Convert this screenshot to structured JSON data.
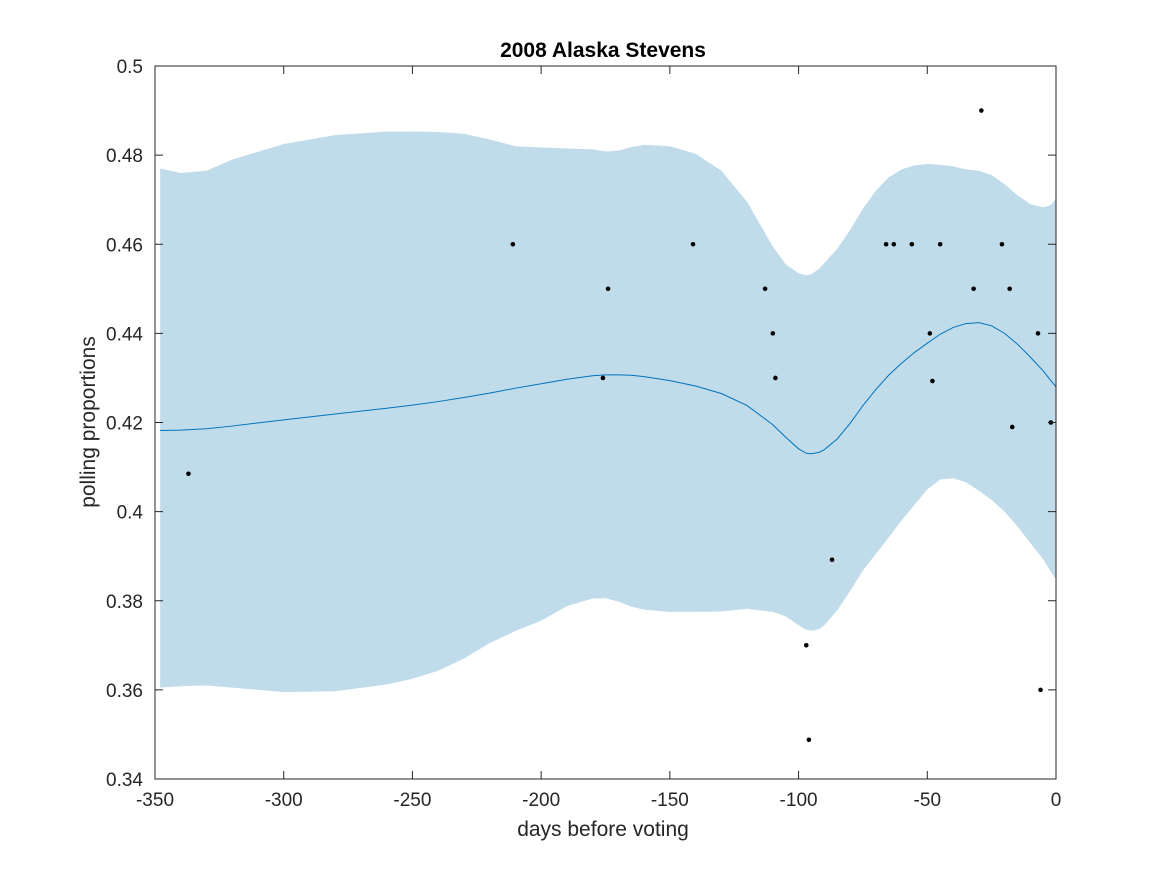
{
  "chart_data": {
    "type": "line",
    "title": "2008 Alaska Stevens",
    "xlabel": "days before voting",
    "ylabel": "polling proportions",
    "xlim": [
      -350,
      0
    ],
    "ylim": [
      0.34,
      0.5
    ],
    "x_ticks": [
      -350,
      -300,
      -250,
      -200,
      -150,
      -100,
      -50,
      0
    ],
    "x_tick_labels": [
      "-350",
      "-300",
      "-250",
      "-200",
      "-150",
      "-100",
      "-50",
      "0"
    ],
    "y_ticks": [
      0.34,
      0.36,
      0.38,
      0.4,
      0.42,
      0.44,
      0.46,
      0.48,
      0.5
    ],
    "y_tick_labels": [
      "0.34",
      "0.36",
      "0.38",
      "0.4",
      "0.42",
      "0.44",
      "0.46",
      "0.48",
      "0.5"
    ],
    "grid": false,
    "box": true,
    "colors": {
      "band": "#c0dcea",
      "mean_line": "#0072bd",
      "points": "#000000",
      "axes": "#262626"
    },
    "series": [
      {
        "type": "area",
        "x": [
          -348,
          -340,
          -330,
          -320,
          -300,
          -280,
          -260,
          -250,
          -240,
          -230,
          -220,
          -210,
          -200,
          -190,
          -180,
          -175,
          -170,
          -165,
          -160,
          -150,
          -140,
          -130,
          -120,
          -110,
          -105,
          -100,
          -97,
          -95,
          -92,
          -90,
          -85,
          -80,
          -75,
          -70,
          -65,
          -60,
          -55,
          -50,
          -45,
          -40,
          -35,
          -30,
          -25,
          -20,
          -15,
          -10,
          -5,
          -2,
          0
        ],
        "upper": [
          0.477,
          0.476,
          0.4765,
          0.479,
          0.4825,
          0.4845,
          0.4853,
          0.4853,
          0.4852,
          0.4848,
          0.4835,
          0.482,
          0.4817,
          0.4815,
          0.4813,
          0.4808,
          0.481,
          0.4818,
          0.4823,
          0.482,
          0.4803,
          0.4765,
          0.4695,
          0.4595,
          0.4555,
          0.4535,
          0.453,
          0.4533,
          0.4545,
          0.4558,
          0.459,
          0.4632,
          0.468,
          0.472,
          0.475,
          0.4768,
          0.4777,
          0.478,
          0.4778,
          0.4775,
          0.4768,
          0.4765,
          0.4755,
          0.4735,
          0.471,
          0.469,
          0.4683,
          0.4688,
          0.4703
        ],
        "lower": [
          0.3605,
          0.3608,
          0.361,
          0.3605,
          0.3595,
          0.3597,
          0.3612,
          0.3625,
          0.3643,
          0.367,
          0.3705,
          0.3732,
          0.3755,
          0.3788,
          0.3805,
          0.3806,
          0.3798,
          0.3787,
          0.378,
          0.3775,
          0.3775,
          0.3776,
          0.3782,
          0.3775,
          0.3765,
          0.3745,
          0.3735,
          0.3733,
          0.3736,
          0.3745,
          0.3778,
          0.3822,
          0.3868,
          0.3905,
          0.3942,
          0.398,
          0.4015,
          0.405,
          0.4072,
          0.4075,
          0.4066,
          0.4047,
          0.4026,
          0.4,
          0.3967,
          0.393,
          0.3893,
          0.3865,
          0.3848
        ]
      },
      {
        "type": "line",
        "x": [
          -348,
          -340,
          -330,
          -320,
          -300,
          -280,
          -260,
          -250,
          -240,
          -230,
          -220,
          -210,
          -200,
          -190,
          -180,
          -175,
          -170,
          -165,
          -160,
          -150,
          -140,
          -130,
          -120,
          -110,
          -105,
          -100,
          -97,
          -95,
          -92,
          -90,
          -85,
          -80,
          -75,
          -70,
          -65,
          -60,
          -55,
          -50,
          -45,
          -40,
          -35,
          -30,
          -25,
          -20,
          -15,
          -10,
          -5,
          -2,
          0
        ],
        "y": [
          0.4182,
          0.4183,
          0.4186,
          0.4192,
          0.4206,
          0.4219,
          0.4232,
          0.4239,
          0.4247,
          0.4256,
          0.4266,
          0.4277,
          0.4287,
          0.4297,
          0.4305,
          0.4307,
          0.4307,
          0.4306,
          0.4303,
          0.4294,
          0.4282,
          0.4265,
          0.4238,
          0.4195,
          0.4167,
          0.4141,
          0.4131,
          0.413,
          0.4133,
          0.4139,
          0.4163,
          0.4198,
          0.4238,
          0.4274,
          0.4306,
          0.4333,
          0.4357,
          0.4378,
          0.4398,
          0.4413,
          0.4422,
          0.4424,
          0.4417,
          0.44,
          0.4376,
          0.4347,
          0.4316,
          0.4294,
          0.428
        ]
      },
      {
        "type": "scatter",
        "x": [
          -337,
          -211,
          -176,
          -174,
          -141,
          -113,
          -110,
          -109,
          -97,
          -96,
          -87,
          -66,
          -63,
          -56,
          -49,
          -48,
          -45,
          -32,
          -29,
          -21,
          -18,
          -17,
          -7,
          -6,
          -2
        ],
        "y": [
          0.4085,
          0.46,
          0.43,
          0.45,
          0.46,
          0.45,
          0.44,
          0.43,
          0.37,
          0.3488,
          0.3892,
          0.46,
          0.46,
          0.46,
          0.44,
          0.4293,
          0.46,
          0.45,
          0.49,
          0.46,
          0.45,
          0.419,
          0.44,
          0.36,
          0.42
        ]
      }
    ]
  }
}
